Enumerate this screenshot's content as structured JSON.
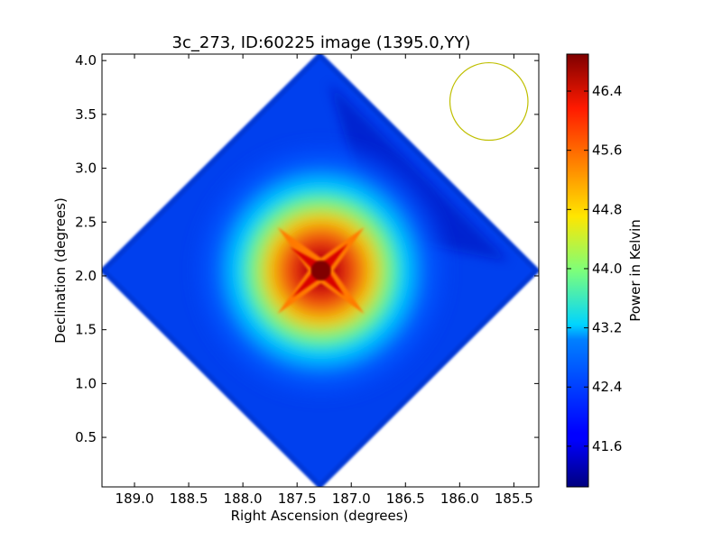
{
  "chart_data": {
    "type": "heatmap",
    "title": "3c_273, ID:60225 image (1395.0,YY)",
    "xlabel": "Right Ascension (degrees)",
    "ylabel": "Declination (degrees)",
    "xlim": [
      189.3,
      185.27
    ],
    "ylim": [
      0.04,
      4.06
    ],
    "x_ticks": [
      189.0,
      188.5,
      188.0,
      187.5,
      187.0,
      186.5,
      186.0,
      185.5
    ],
    "x_tick_labels": [
      "189.0",
      "188.5",
      "188.0",
      "187.5",
      "187.0",
      "186.5",
      "186.0",
      "185.5"
    ],
    "y_ticks": [
      0.5,
      1.0,
      1.5,
      2.0,
      2.5,
      3.0,
      3.5,
      4.0
    ],
    "y_tick_labels": [
      "0.5",
      "1.0",
      "1.5",
      "2.0",
      "2.5",
      "3.0",
      "3.5",
      "4.0"
    ],
    "field_of_view": {
      "shape": "diamond",
      "center_ra": 187.29,
      "center_dec": 2.05,
      "half_extent_ra": 2.0,
      "half_extent_dec": 2.0
    },
    "source": {
      "ra": 187.28,
      "dec": 2.05,
      "peak_kelvin": 46.8,
      "background_kelvin": 41.5
    },
    "beam_circle": {
      "center_ra": 185.73,
      "center_dec": 3.62,
      "radius_deg": 0.36,
      "color": "#bfbf00"
    },
    "colorbar": {
      "label": "Power in Kelvin",
      "min": 41.05,
      "max": 46.9,
      "ticks": [
        41.6,
        42.4,
        43.2,
        44.0,
        44.8,
        45.6,
        46.4
      ],
      "tick_labels": [
        "41.6",
        "42.4",
        "43.2",
        "44.0",
        "44.8",
        "45.6",
        "46.4"
      ],
      "colormap": "jet"
    }
  }
}
